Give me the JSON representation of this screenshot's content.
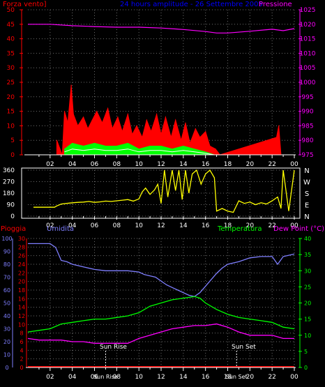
{
  "colors": {
    "background": "#000000",
    "grid": "#6e6e6e",
    "wind": "#ff0000",
    "pressure": "#ff00ff",
    "title": "#0000ff",
    "direction": "#ffff00",
    "rain": "#ff0000",
    "humidity": "#7f7fff",
    "temperature": "#00ff00",
    "dewpoint": "#ff00ff",
    "axis": "#ffffff",
    "gust": "#00ff00",
    "wind_avg": "#ffffff"
  },
  "top": {
    "title": "24 hours amplitude - 26 Settembre 2005",
    "left_label": "Forza vento]",
    "right_label": "Pressione"
  },
  "bottom": {
    "label_rain": "Pioggia",
    "label_humidity": "Umidita",
    "label_temperature": "Temperatura",
    "label_dewpoint": "Dew Point (°C)",
    "sun_rise": "Sun Rise",
    "sun_set": "Sun Set"
  },
  "chart_data": [
    {
      "type": "area",
      "title": "24 hours amplitude - 26 Settembre 2005",
      "x_ticks": [
        "02",
        "04",
        "06",
        "08",
        "10",
        "12",
        "14",
        "16",
        "18",
        "20",
        "22",
        "00"
      ],
      "y_left_label": "Forza vento]",
      "y_left_ticks": [
        "0",
        "5",
        "10",
        "15",
        "20",
        "25",
        "30",
        "35",
        "40",
        "45",
        "50"
      ],
      "y_left_range": [
        0,
        50
      ],
      "y_right_label": "Pressione",
      "y_right_ticks": [
        "975",
        "980",
        "985",
        "990",
        "995",
        "1000",
        "1005",
        "1010",
        "1015",
        "1020",
        "1025"
      ],
      "y_right_range": [
        975,
        1025
      ],
      "series": [
        {
          "name": "Pressione",
          "hours": [
            0,
            2,
            4,
            6,
            8,
            10,
            12,
            14,
            16,
            17,
            18,
            20,
            22,
            23,
            24
          ],
          "values": [
            1020,
            1020,
            1019.5,
            1019.2,
            1019,
            1019,
            1018.7,
            1018.2,
            1017.5,
            1017,
            1017,
            1017.6,
            1018.3,
            1017.8,
            1018.5
          ]
        },
        {
          "hours": [
            2.6,
            3.1,
            3.3,
            3.6,
            3.9,
            4.1,
            4.5,
            5.0,
            5.4,
            5.8,
            6.2,
            6.7,
            7.2,
            7.6,
            8.1,
            8.5,
            9.0,
            9.4,
            9.8,
            10.3,
            10.7,
            11.1,
            11.6,
            12.0,
            12.4,
            12.9,
            13.3,
            13.8,
            14.2,
            14.6,
            15.1,
            15.5,
            16.0,
            16.4,
            16.9,
            17.3,
            22.4,
            22.6,
            22.8
          ],
          "values": [
            5,
            0,
            15,
            11,
            24,
            14,
            10,
            13,
            9,
            12,
            15,
            11,
            16,
            9,
            13,
            8,
            14,
            7,
            10,
            6,
            12,
            8,
            14,
            7,
            13,
            6,
            12,
            5,
            11,
            4,
            9,
            6,
            8,
            3,
            2,
            0,
            6,
            10,
            0
          ]
        },
        {
          "hours": [
            3.3,
            4.0,
            5.0,
            6.0,
            7.0,
            8.0,
            9.0,
            10.0,
            11.0,
            12.0,
            13.0,
            14.0,
            15.0,
            16.0,
            16.8
          ],
          "values": [
            2,
            4,
            3,
            4,
            3,
            3,
            4,
            2,
            3,
            3,
            2,
            3,
            2,
            1,
            0
          ]
        }
      ]
    },
    {
      "type": "line",
      "x_ticks": [
        "02",
        "04",
        "06",
        "08",
        "10",
        "12",
        "14",
        "16",
        "18",
        "20",
        "22",
        "00"
      ],
      "y_ticks": [
        "0",
        "90",
        "180",
        "270",
        "360"
      ],
      "y_range": [
        0,
        360
      ],
      "right_labels": [
        "N",
        "W",
        "S",
        "E",
        "N"
      ],
      "series": [
        {
          "hours": [
            0.5,
            1.5,
            2.4,
            2.6,
            3.0,
            3.5,
            4.0,
            4.5,
            5.0,
            5.5,
            6.0,
            6.5,
            7.0,
            7.5,
            8.0,
            8.5,
            9.0,
            9.5,
            10.0,
            10.3,
            10.6,
            11.0,
            11.4,
            11.7,
            12.0,
            12.3,
            12.6,
            13.0,
            13.3,
            13.6,
            13.9,
            14.2,
            14.5,
            14.8,
            15.2,
            15.6,
            16.0,
            16.4,
            16.8,
            17.0,
            17.5,
            18.0,
            18.5,
            19.0,
            19.5,
            20.0,
            20.5,
            21.0,
            21.5,
            22.0,
            22.5,
            22.8,
            23.0,
            23.5,
            24.0
          ],
          "values": [
            70,
            70,
            70,
            80,
            95,
            100,
            105,
            108,
            110,
            115,
            108,
            112,
            118,
            115,
            120,
            125,
            130,
            118,
            135,
            190,
            220,
            170,
            205,
            250,
            100,
            360,
            150,
            360,
            200,
            360,
            130,
            360,
            180,
            330,
            360,
            250,
            330,
            360,
            300,
            40,
            60,
            40,
            30,
            120,
            100,
            110,
            90,
            105,
            95,
            120,
            150,
            60,
            360,
            40,
            360
          ]
        }
      ]
    },
    {
      "type": "line",
      "x_ticks": [
        "02",
        "04",
        "06",
        "08",
        "10",
        "12",
        "14",
        "16",
        "18",
        "20",
        "22",
        "00"
      ],
      "y_left_ticks": [
        "0",
        "2",
        "4",
        "6",
        "8",
        "10",
        "12",
        "14",
        "16",
        "18",
        "20",
        "22",
        "24",
        "26",
        "28",
        "30"
      ],
      "y_left_label": "Pioggia",
      "y_left_range": [
        0,
        30
      ],
      "y_humidity_label": "Umidita",
      "y_humidity_ticks": [
        "0",
        "10",
        "20",
        "30",
        "40",
        "50",
        "60",
        "70",
        "80",
        "90",
        "100"
      ],
      "y_humidity_range": [
        0,
        100
      ],
      "y_right_label": "Dew Point (°C)",
      "y_right_ticks": [
        "0",
        "5",
        "10",
        "15",
        "20",
        "25",
        "30",
        "35",
        "40"
      ],
      "y_right_range": [
        0,
        40
      ],
      "series": [
        {
          "name": "Pioggia",
          "hours": [
            0,
            24
          ],
          "values": [
            0,
            0
          ]
        },
        {
          "name": "Umidita",
          "hours": [
            0,
            1,
            2,
            2.5,
            3,
            3.5,
            4,
            5,
            6,
            7,
            8,
            9,
            10,
            10.5,
            11,
            11.5,
            12,
            12.5,
            13,
            13.5,
            14,
            14.5,
            15,
            15.5,
            16,
            16.5,
            17,
            17.5,
            18,
            19,
            20,
            21,
            22,
            22.5,
            23,
            23.5,
            24
          ],
          "values": [
            96,
            96,
            96,
            93,
            83,
            82,
            80,
            78,
            76,
            75,
            75,
            75,
            74,
            72,
            71,
            70,
            67,
            64,
            62,
            60,
            58,
            56,
            55,
            58,
            63,
            68,
            73,
            77,
            80,
            82,
            85,
            86,
            86,
            80,
            86,
            87,
            88
          ]
        },
        {
          "name": "Temperatura",
          "hours": [
            0,
            1,
            2,
            3,
            4,
            5,
            6,
            7,
            8,
            9,
            10,
            11,
            12,
            13,
            14,
            15,
            15.5,
            16,
            17,
            18,
            19,
            20,
            21,
            22,
            23,
            24
          ],
          "values": [
            11,
            11.5,
            12,
            13.5,
            14,
            14.5,
            15,
            15,
            15.5,
            16,
            17,
            19,
            20,
            21,
            21.5,
            22,
            21.5,
            20,
            18,
            16.5,
            15.5,
            15,
            14.5,
            14,
            12.5,
            12
          ]
        },
        {
          "name": "Dew Point (°C)",
          "hours": [
            0,
            1,
            2,
            3,
            4,
            5,
            6,
            7,
            8,
            9,
            10,
            11,
            12,
            13,
            14,
            15,
            16,
            17,
            18,
            19,
            20,
            21,
            22,
            23,
            24
          ],
          "values": [
            9,
            8.5,
            8.5,
            8.5,
            8,
            8,
            7.5,
            7.5,
            7.5,
            7.5,
            9,
            10,
            11,
            12,
            12.5,
            13,
            13,
            13.5,
            12.5,
            11,
            10,
            10,
            10,
            9,
            9
          ]
        }
      ],
      "annotations": [
        "Sun Rise",
        "Sun Set"
      ],
      "x_extra_labels": [
        "Sun Rise",
        "Sun Set"
      ]
    }
  ]
}
